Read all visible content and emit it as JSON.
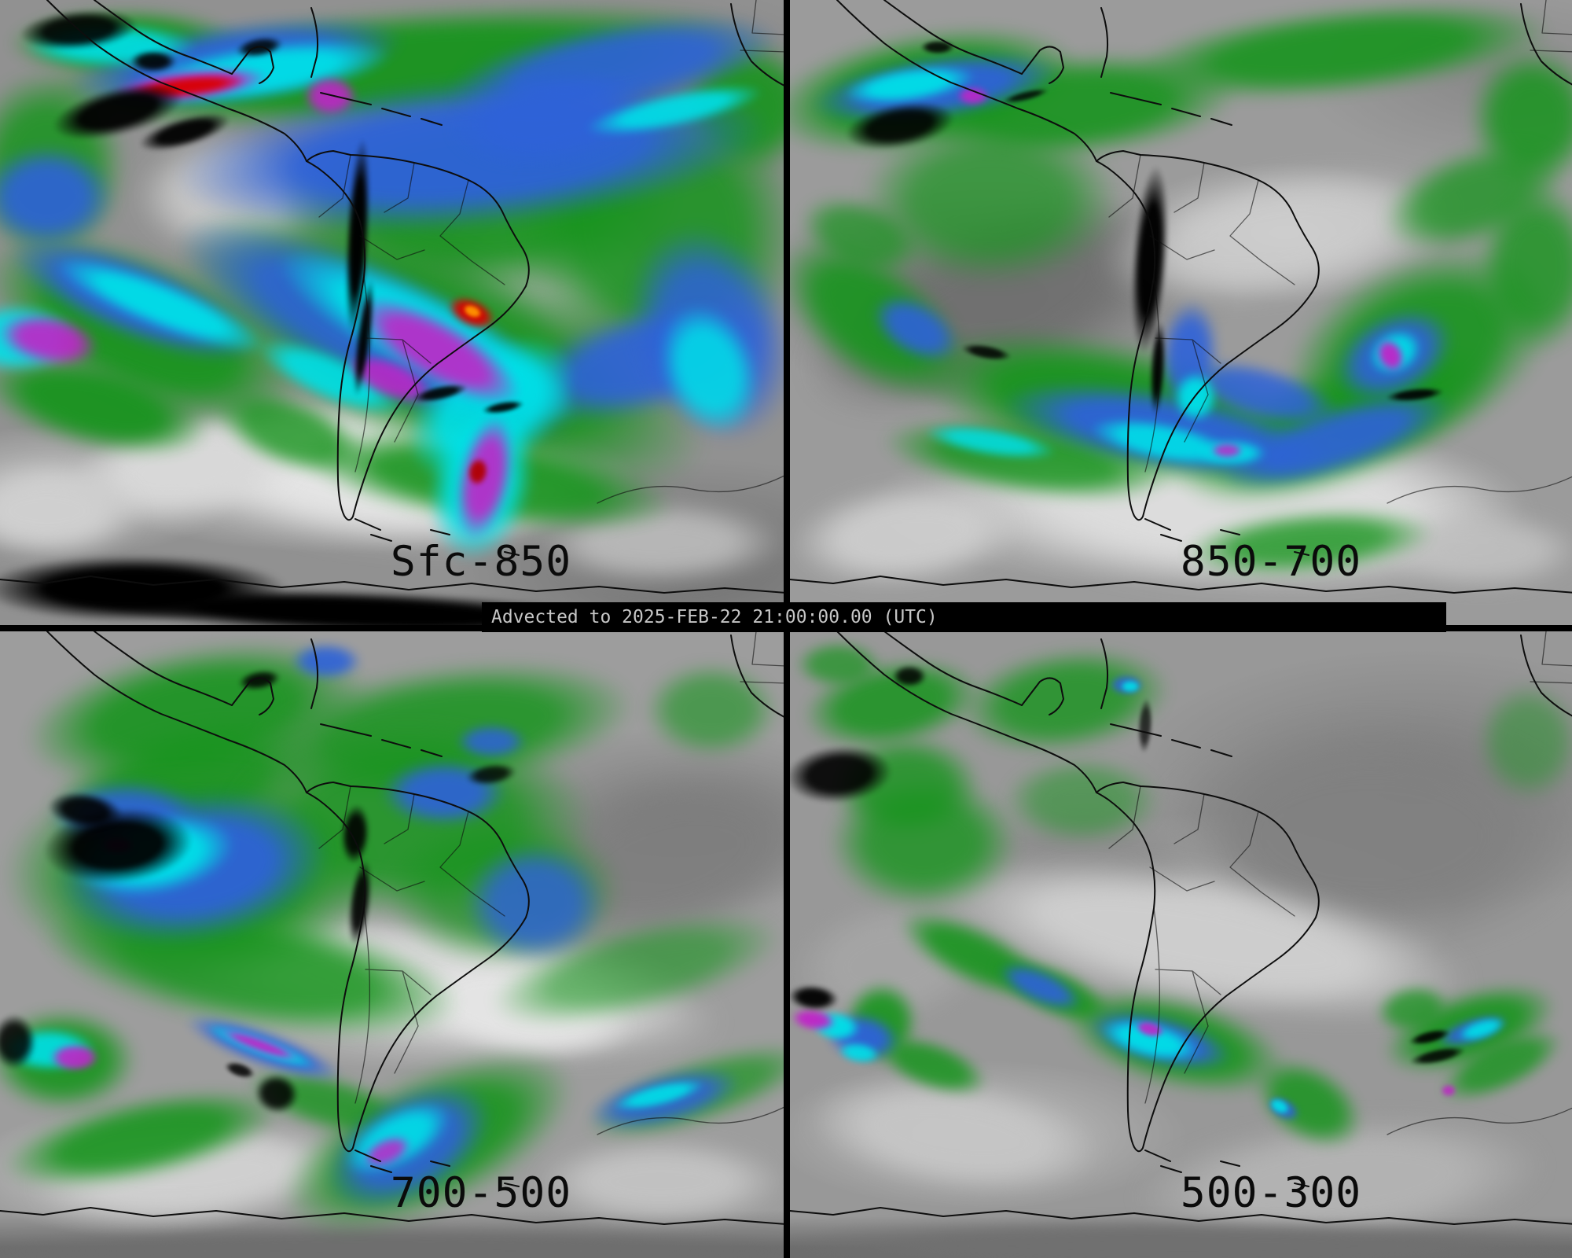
{
  "figure": {
    "timestamp_bar": "Advected to 2025-FEB-22 21:00:00.00 (UTC)"
  },
  "panels": [
    {
      "label": "Sfc-850",
      "position": "top-left"
    },
    {
      "label": "850-700",
      "position": "top-right"
    },
    {
      "label": "700-500",
      "position": "bottom-left"
    },
    {
      "label": "500-300",
      "position": "bottom-right"
    }
  ],
  "palette": {
    "dry_gray": "#969696",
    "moist_green": "#18941e",
    "moist_blue": "#2e62d9",
    "moist_cyan": "#00e0e8",
    "moist_magenta": "#c024c8",
    "moist_red": "#d90000",
    "moist_orange": "#ff9500",
    "terrain_black": "#000000",
    "label_text": "#0b0b0b",
    "timestamp_text": "#c6c6c6"
  }
}
